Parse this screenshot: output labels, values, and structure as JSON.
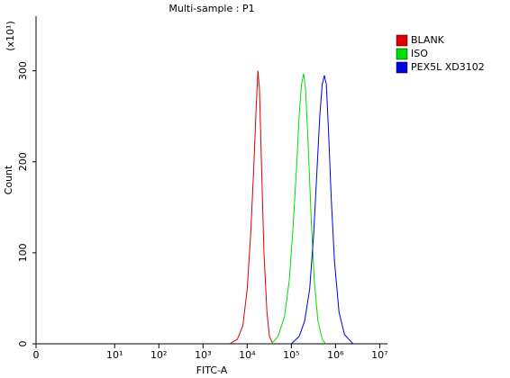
{
  "chart_data": {
    "type": "histogram-overlay",
    "title": "Multi-sample : P1",
    "x_label": "FITC-A",
    "y_label": "Count",
    "y_multiplier": "(x10¹)",
    "xscale": "symlog",
    "xlim": [
      0,
      15000000
    ],
    "xticks": [
      0,
      {
        "value": 10,
        "label": "10¹"
      },
      {
        "value": 100,
        "label": "10²"
      },
      {
        "value": 1000,
        "label": "10³"
      },
      {
        "value": 10000,
        "label": "10⁴"
      },
      {
        "value": 100000,
        "label": "10⁵"
      },
      {
        "value": 1000000,
        "label": "10⁶"
      },
      {
        "value": 10000000,
        "label": "10⁷"
      }
    ],
    "ylim": [
      0,
      360
    ],
    "yticks": [
      0,
      100,
      200,
      300
    ],
    "legend": "top-right",
    "series": [
      {
        "name": "BLANK",
        "color": "#e00000",
        "x": [
          4000,
          6000,
          8000,
          10000,
          12000,
          14000,
          16000,
          17500,
          19000,
          21000,
          24000,
          28000,
          32000,
          38000
        ],
        "values": [
          0,
          5,
          20,
          60,
          120,
          190,
          260,
          300,
          280,
          200,
          100,
          35,
          8,
          0
        ]
      },
      {
        "name": "ISO",
        "color": "#00dd00",
        "x": [
          35000,
          50000,
          70000,
          90000,
          110000,
          130000,
          150000,
          170000,
          190000,
          210000,
          240000,
          280000,
          330000,
          400000,
          500000,
          600000
        ],
        "values": [
          0,
          8,
          30,
          70,
          130,
          190,
          250,
          285,
          297,
          280,
          220,
          140,
          70,
          25,
          5,
          0
        ]
      },
      {
        "name": "PEX5L XD3102",
        "color": "#0000e0",
        "x": [
          100000,
          150000,
          200000,
          260000,
          320000,
          380000,
          440000,
          500000,
          560000,
          620000,
          700000,
          800000,
          950000,
          1200000,
          1600000,
          2500000
        ],
        "values": [
          0,
          8,
          25,
          60,
          120,
          190,
          250,
          285,
          295,
          285,
          230,
          160,
          90,
          35,
          10,
          0
        ]
      }
    ]
  }
}
